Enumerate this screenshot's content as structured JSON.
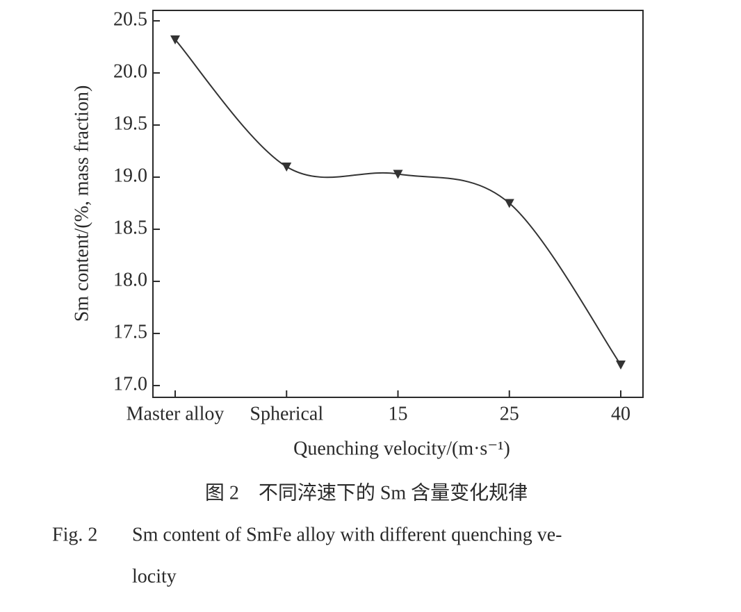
{
  "chart_data": {
    "type": "line",
    "ylabel": "Sm content/(%, mass fraction)",
    "xlabel": "Quenching velocity/(m·s⁻¹)",
    "categories": [
      "Master alloy",
      "Spherical",
      "15",
      "25",
      "40"
    ],
    "series": [
      {
        "color": "#333333",
        "values": [
          20.32,
          19.1,
          19.03,
          18.75,
          17.2
        ]
      }
    ],
    "ylim": [
      16.887,
      20.6
    ],
    "yticks": [
      {
        "value": 17,
        "label": "17.0"
      },
      17.5,
      {
        "value": 18,
        "label": "18.0"
      },
      18.5,
      {
        "value": 19,
        "label": "19.0"
      },
      19.5,
      {
        "value": 20,
        "label": "20.0"
      },
      20.5
    ]
  },
  "caption": {
    "cn": "图 2　不同淬速下的 Sm 含量变化规律",
    "en_label": "Fig. 2",
    "en_lines": [
      "Sm content of SmFe alloy with different quenching ve-",
      "locity"
    ]
  }
}
